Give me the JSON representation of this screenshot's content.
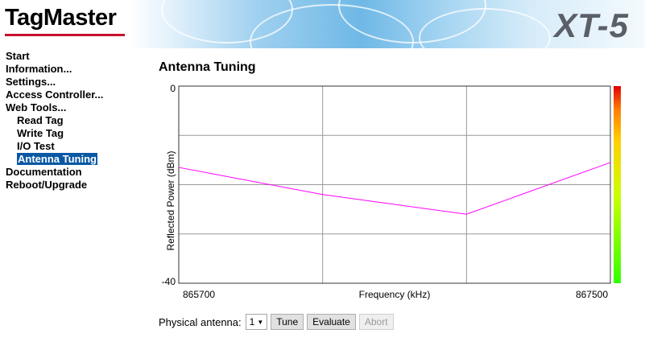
{
  "header": {
    "logo": "TagMaster",
    "model": "XT-5",
    "colors": {
      "logo_bar": "#c8102e",
      "model_text": "#5b6068"
    }
  },
  "nav": {
    "items": [
      {
        "label": "Start"
      },
      {
        "label": "Information..."
      },
      {
        "label": "Settings..."
      },
      {
        "label": "Access Controller..."
      },
      {
        "label": "Web Tools..."
      },
      {
        "label": "Read Tag",
        "sub": true
      },
      {
        "label": "Write Tag",
        "sub": true
      },
      {
        "label": "I/O Test",
        "sub": true
      },
      {
        "label": "Antenna Tuning",
        "sub": true,
        "active": true
      },
      {
        "label": "Documentation"
      },
      {
        "label": "Reboot/Upgrade"
      }
    ],
    "active_color": "#0a58a4"
  },
  "page": {
    "title": "Antenna Tuning"
  },
  "chart_data": {
    "type": "line",
    "xlabel": "Frequency (kHz)",
    "ylabel": "Reflected Power (dBm)",
    "x_tick_labels": [
      "865700",
      "867500"
    ],
    "y_tick_labels": [
      "0",
      "-40"
    ],
    "xlim": [
      865700,
      867500
    ],
    "ylim": [
      -40,
      0
    ],
    "grid": true,
    "series": [
      {
        "color": "#ff00ff",
        "x": [
          865700,
          866300,
          866900,
          867500
        ],
        "y": [
          -16.5,
          -22,
          -26,
          -15.5
        ]
      }
    ],
    "colorbar": {
      "colors": [
        "#e00000",
        "#ff8000",
        "#ffd000",
        "#ccff00",
        "#33ff00"
      ]
    }
  },
  "controls": {
    "antenna_label": "Physical antenna:",
    "antenna_value": "1",
    "tune": "Tune",
    "evaluate": "Evaluate",
    "abort": "Abort"
  }
}
